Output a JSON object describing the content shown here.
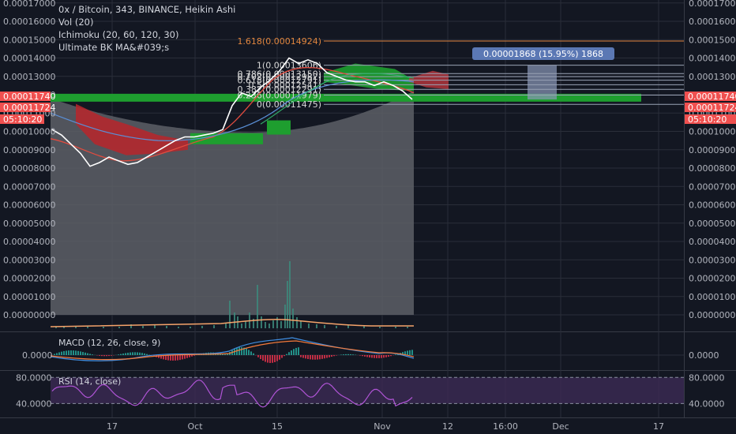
{
  "legend": {
    "title": "0x / Bitcoin, 343, BINANCE, Heikin Ashi",
    "vol": "Vol (20)",
    "ichimoku": "Ichimoku (20, 60, 120, 30)",
    "ultimate": "Ultimate BK MA&#039;s"
  },
  "panes": {
    "macd_label": "MACD (12, 26, close, 9)",
    "rsi_label": "RSI (14, close)"
  },
  "price_tags": {
    "last": "0.00011740",
    "second": "0.00011724",
    "countdown": "05:10:20"
  },
  "measure_label": "0.00001868 (15.95%) 1868",
  "colors": {
    "background": "#131722",
    "grid": "#2a2e39",
    "axis_text": "#b2b5be",
    "price_tag": "#f0504f",
    "fib": "#e0853e",
    "measure": "#5b78b4"
  },
  "chart_data": [
    {
      "type": "line",
      "title": "0x / Bitcoin, 343, BINANCE, Heikin Ashi",
      "x_ticks": [
        "17",
        "Oct",
        "15",
        "Nov",
        "12",
        "16:00",
        "Dec",
        "17"
      ],
      "y_ticks": [
        "0.00017000",
        "0.00016000",
        "0.00015000",
        "0.00014000",
        "0.00013000",
        "0.00012000",
        "0.00011000",
        "0.00010000",
        "0.00009000",
        "0.00008000",
        "0.00007000",
        "0.00006000",
        "0.00005000",
        "0.00004000",
        "0.00003000",
        "0.00002000",
        "0.00001000",
        "0.00000000"
      ],
      "ylim": [
        0,
        0.00017
      ],
      "last_price": 0.0001174,
      "fib_levels": [
        {
          "label": "1.618(0.00014924)",
          "value": 0.00014924
        },
        {
          "label": "1(0.00013606)",
          "value": 0.00013606
        },
        {
          "label": "0.786(0.00013150)",
          "value": 0.0001315
        },
        {
          "label": "0.702(0.00012982)",
          "value": 0.00012982
        },
        {
          "label": "0.618(0.00012791)",
          "value": 0.00012791
        },
        {
          "label": "0.5(0.00012541)",
          "value": 0.00012541
        },
        {
          "label": "0.382(0.00012291)",
          "value": 0.00012291
        },
        {
          "label": "0.236(0.00011979)",
          "value": 0.00011979
        },
        {
          "label": "0(0.00011475)",
          "value": 0.00011475
        }
      ],
      "price_series": [
        0.000101,
        9.8e-05,
        9.3e-05,
        8.8e-05,
        8.1e-05,
        8.3e-05,
        8.6e-05,
        8.4e-05,
        8.2e-05,
        8.3e-05,
        8.6e-05,
        8.9e-05,
        9.2e-05,
        9.5e-05,
        9.7e-05,
        9.7e-05,
        9.8e-05,
        9.9e-05,
        0.000101,
        0.000114,
        0.000121,
        0.000119,
        0.000124,
        0.000128,
        0.000133,
        0.00014,
        0.000137,
        0.000139,
        0.000137,
        0.000132,
        0.00013,
        0.000128,
        0.000127,
        0.000127,
        0.000125,
        0.000127,
        0.000125,
        0.000122,
        0.0001174
      ]
    },
    {
      "type": "line",
      "title": "MACD (12, 26, close, 9)",
      "y_ticks": [
        "0.0000"
      ]
    },
    {
      "type": "line",
      "title": "RSI (14, close)",
      "y_ticks": [
        "80.0000",
        "40.0000"
      ],
      "ylim": [
        20,
        90
      ]
    }
  ]
}
